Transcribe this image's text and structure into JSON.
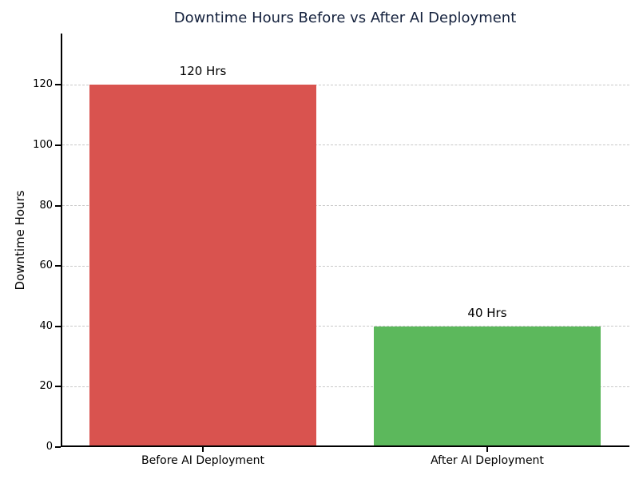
{
  "figure": {
    "background": "#ffffff"
  },
  "chart_data": {
    "type": "bar",
    "title": "Downtime Hours Before vs After AI Deployment",
    "categories": [
      "Before AI Deployment",
      "After AI Deployment"
    ],
    "values": [
      120,
      40
    ],
    "bar_value_labels": [
      "120 Hrs",
      "40 Hrs"
    ],
    "bar_colors": [
      "#d9534f",
      "#5cb85c"
    ],
    "xlabel": "",
    "ylabel": "Downtime Hours",
    "ylim": [
      0,
      137
    ],
    "yticks": [
      "0",
      "20",
      "40",
      "60",
      "80",
      "100",
      "120"
    ],
    "bar_width_fraction": 0.8,
    "grid": {
      "axis": "y",
      "style": "dashed",
      "color": "#c8c8c8"
    },
    "legend": "none"
  },
  "colors": {
    "title_text": "#14213d",
    "axis": "#000000",
    "tick_text": "#000000",
    "grid": "#c8c8c8",
    "bar_before": "#d9534f",
    "bar_after": "#5cb85c",
    "background": "#ffffff"
  }
}
